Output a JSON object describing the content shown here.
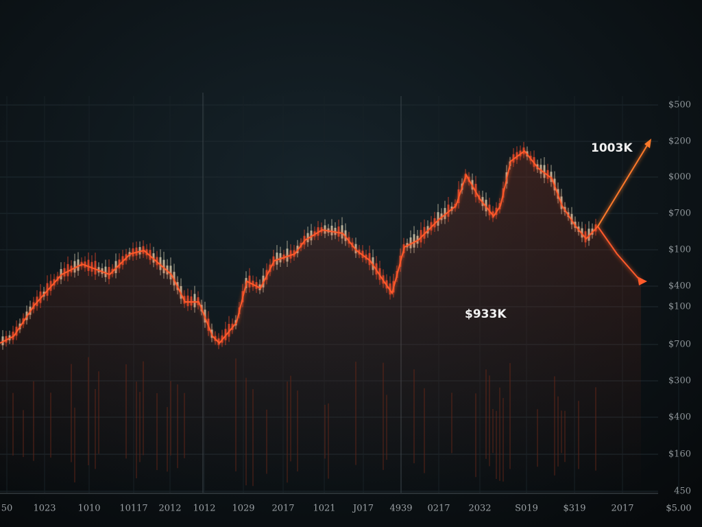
{
  "y_axis_labels": [
    "$500",
    "$200",
    "$000",
    "$700",
    "$100",
    "$400",
    "$100",
    "$700",
    "$300",
    "$400",
    "$160",
    "450"
  ],
  "x_axis_labels": [
    "50",
    "1023",
    "1010",
    "10117",
    "2012",
    "1012",
    "1029",
    "2017",
    "1021",
    "J017",
    "4939",
    "0217",
    "2032",
    "S019",
    "$319",
    "2017",
    "$5.00"
  ],
  "annotations": [
    "1003K",
    "$933K"
  ]
}
